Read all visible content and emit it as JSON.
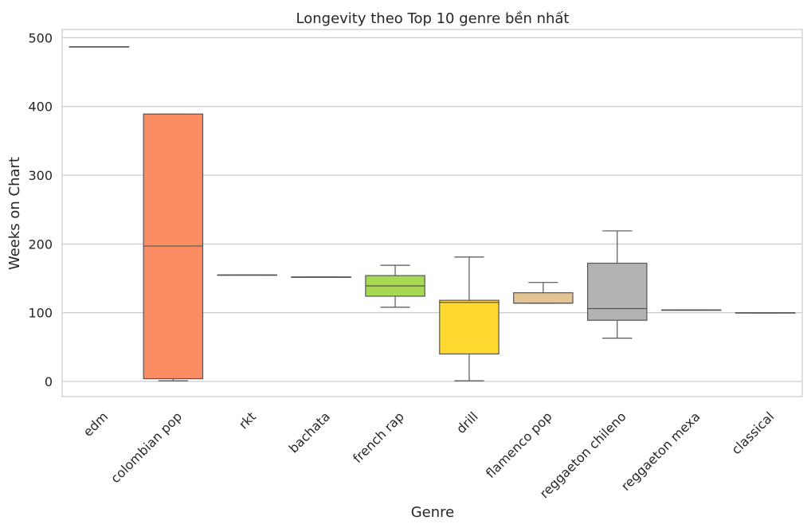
{
  "chart_data": {
    "type": "box",
    "title": "Longevity theo Top 10 genre bền nhất",
    "xlabel": "Genre",
    "ylabel": "Weeks on Chart",
    "ylim": [
      -22,
      512
    ],
    "yticks": [
      0,
      100,
      200,
      300,
      400,
      500
    ],
    "grid": "horizontal",
    "categories": [
      "edm",
      "colombian pop",
      "rkt",
      "bachata",
      "french rap",
      "drill",
      "flamenco pop",
      "reggaeton chileno",
      "reggaeton mexa",
      "classical"
    ],
    "boxes": [
      {
        "min": 487,
        "q1": 487,
        "median": 487,
        "q3": 487,
        "max": 487,
        "color": "#66c2a5"
      },
      {
        "min": 1,
        "q1": 4,
        "median": 197,
        "q3": 389,
        "max": 389,
        "color": "#fc8d62"
      },
      {
        "min": 155,
        "q1": 155,
        "median": 155,
        "q3": 155,
        "max": 155,
        "color": "#8da0cb"
      },
      {
        "min": 152,
        "q1": 152,
        "median": 152,
        "q3": 152,
        "max": 152,
        "color": "#e78ac3"
      },
      {
        "min": 108,
        "q1": 124,
        "median": 139,
        "q3": 154,
        "max": 169,
        "color": "#a6d854"
      },
      {
        "min": 1,
        "q1": 40,
        "median": 115,
        "q3": 118,
        "max": 181,
        "color": "#ffd92f"
      },
      {
        "min": 114,
        "q1": 114,
        "median": 114,
        "q3": 129,
        "max": 144,
        "color": "#e5c494"
      },
      {
        "min": 63,
        "q1": 89,
        "median": 106,
        "q3": 172,
        "max": 219,
        "color": "#b3b3b3"
      },
      {
        "min": 104,
        "q1": 104,
        "median": 104,
        "q3": 104,
        "max": 104,
        "color": "#66c2a5"
      },
      {
        "min": 100,
        "q1": 100,
        "median": 100,
        "q3": 100,
        "max": 100,
        "color": "#fc8d62"
      }
    ]
  }
}
